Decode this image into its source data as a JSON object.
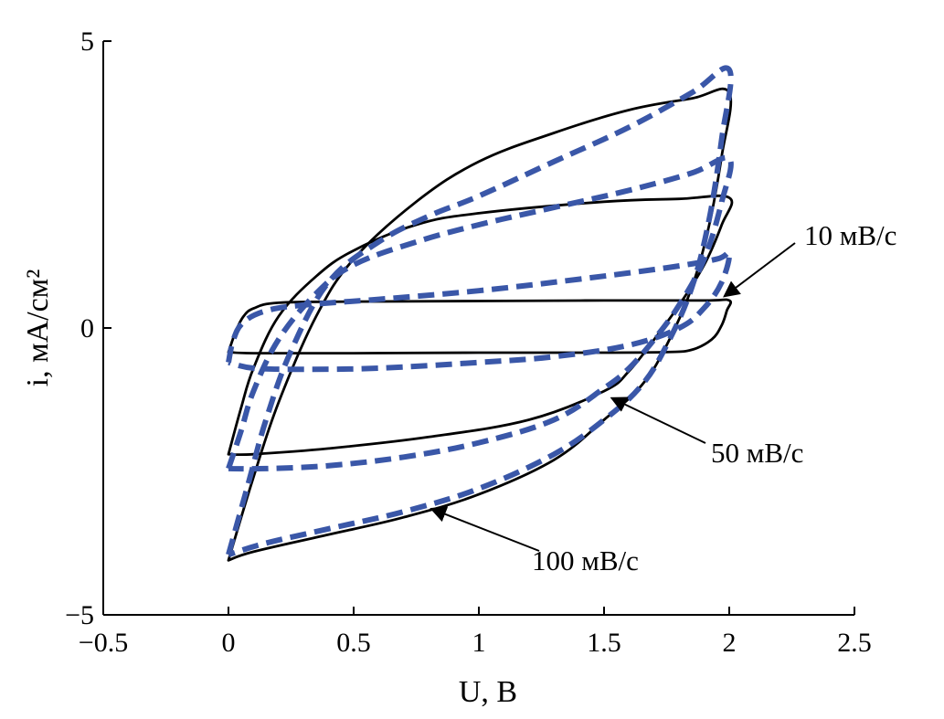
{
  "chart_data": {
    "type": "line",
    "xlabel": "U, В",
    "ylabel": "i, мА/см²",
    "xlim": [
      -0.5,
      2.5
    ],
    "ylim": [
      -5,
      5
    ],
    "grid": false,
    "x_ticks": [
      "−0.5",
      "0",
      "0.5",
      "1",
      "1.5",
      "2",
      "2.5"
    ],
    "y_ticks": [
      "−5",
      "0",
      "5"
    ],
    "colors": {
      "measured": "#000000",
      "model": "#3a57a8"
    },
    "annotations": [
      {
        "text": "10 мВ/с",
        "target": [
          1.98,
          0.55
        ]
      },
      {
        "text": "50 мВ/с",
        "target": [
          1.53,
          -1.22
        ]
      },
      {
        "text": "100 мВ/с",
        "target": [
          0.81,
          -3.15
        ]
      }
    ],
    "series": [
      {
        "style": "solid",
        "color": "#000000",
        "x": [
          0,
          0.03,
          0.06,
          0.1,
          0.2,
          0.5,
          1.0,
          1.5,
          1.9,
          2.0,
          1.99,
          1.97,
          1.93,
          1.85,
          1.75,
          1.5,
          1.0,
          0.5,
          0.1,
          0.0
        ],
        "y": [
          -0.42,
          -0.05,
          0.2,
          0.34,
          0.44,
          0.46,
          0.47,
          0.48,
          0.48,
          0.48,
          0.3,
          0.05,
          -0.2,
          -0.38,
          -0.42,
          -0.43,
          -0.43,
          -0.44,
          -0.44,
          -0.42
        ]
      },
      {
        "style": "solid",
        "color": "#000000",
        "x": [
          0,
          0.05,
          0.1,
          0.2,
          0.35,
          0.5,
          0.75,
          1.0,
          1.5,
          1.8,
          2.0,
          1.97,
          1.9,
          1.8,
          1.7,
          1.6,
          1.5,
          1.2,
          0.8,
          0.4,
          0.1,
          0.0
        ],
        "y": [
          -2.2,
          -1.4,
          -0.7,
          0.2,
          0.9,
          1.35,
          1.8,
          2.0,
          2.2,
          2.25,
          2.27,
          1.8,
          1.1,
          0.4,
          -0.2,
          -0.75,
          -1.1,
          -1.6,
          -1.9,
          -2.1,
          -2.2,
          -2.2
        ]
      },
      {
        "style": "solid",
        "color": "#000000",
        "x": [
          0,
          0.1,
          0.2,
          0.35,
          0.5,
          0.75,
          1.0,
          1.3,
          1.6,
          1.85,
          2.0,
          1.97,
          1.92,
          1.85,
          1.75,
          1.65,
          1.5,
          1.3,
          1.0,
          0.7,
          0.4,
          0.1,
          0.0
        ],
        "y": [
          -4.05,
          -2.6,
          -1.3,
          0.2,
          1.2,
          2.2,
          2.9,
          3.4,
          3.8,
          4.0,
          4.1,
          3.0,
          1.8,
          0.7,
          -0.3,
          -1.0,
          -1.6,
          -2.3,
          -2.9,
          -3.3,
          -3.6,
          -3.9,
          -4.05
        ]
      },
      {
        "style": "dashed",
        "color": "#3a57a8",
        "x": [
          0,
          0.02,
          0.06,
          0.15,
          0.3,
          0.6,
          1.0,
          1.4,
          1.75,
          1.95,
          2.0,
          1.97,
          1.9,
          1.8,
          1.6,
          1.3,
          1.0,
          0.6,
          0.3,
          0.1,
          0.0
        ],
        "y": [
          -0.6,
          -0.2,
          0.1,
          0.3,
          0.4,
          0.5,
          0.65,
          0.85,
          1.05,
          1.2,
          1.3,
          0.8,
          0.35,
          0.0,
          -0.3,
          -0.5,
          -0.6,
          -0.7,
          -0.72,
          -0.7,
          -0.6
        ]
      },
      {
        "style": "dashed",
        "color": "#3a57a8",
        "x": [
          0,
          0.05,
          0.1,
          0.2,
          0.35,
          0.5,
          0.75,
          1.0,
          1.3,
          1.6,
          1.85,
          2.0,
          1.97,
          1.9,
          1.8,
          1.7,
          1.6,
          1.5,
          1.3,
          1.0,
          0.7,
          0.4,
          0.15,
          0.0
        ],
        "y": [
          -2.45,
          -1.8,
          -1.1,
          -0.2,
          0.6,
          1.1,
          1.5,
          1.8,
          2.1,
          2.4,
          2.7,
          2.95,
          2.2,
          1.2,
          0.4,
          -0.2,
          -0.7,
          -1.05,
          -1.6,
          -2.0,
          -2.25,
          -2.4,
          -2.45,
          -2.45
        ]
      },
      {
        "style": "dashed",
        "color": "#3a57a8",
        "x": [
          0,
          0.08,
          0.15,
          0.25,
          0.4,
          0.6,
          0.8,
          1.0,
          1.3,
          1.6,
          1.85,
          2.0,
          1.97,
          1.92,
          1.85,
          1.75,
          1.65,
          1.5,
          1.3,
          1.0,
          0.7,
          0.4,
          0.15,
          0.0
        ],
        "y": [
          -3.95,
          -2.7,
          -1.6,
          -0.4,
          0.8,
          1.5,
          1.95,
          2.3,
          2.9,
          3.5,
          4.1,
          4.5,
          3.3,
          1.9,
          0.7,
          -0.3,
          -1.0,
          -1.6,
          -2.2,
          -2.8,
          -3.2,
          -3.5,
          -3.75,
          -3.95
        ]
      }
    ]
  }
}
